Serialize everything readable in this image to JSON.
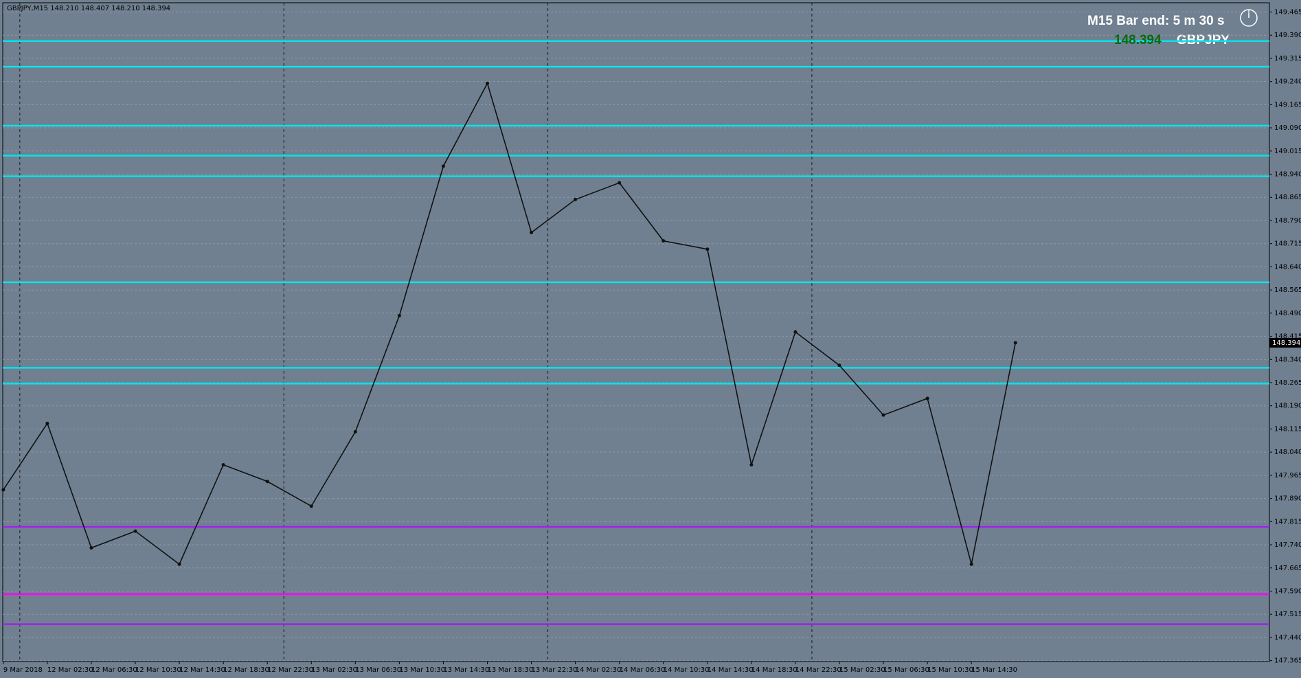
{
  "chart_data": {
    "type": "line",
    "header": "GBPJPY,M15  148.210 148.407 148.210 148.394",
    "bar_end": "M15 Bar end: 5 m 30 s",
    "symbol": "GBPJPY",
    "categories": [
      "9 Mar 2018",
      "12 Mar 02:30",
      "12 Mar 06:30",
      "12 Mar 10:30",
      "12 Mar 14:30",
      "12 Mar 18:30",
      "12 Mar 22:30",
      "13 Mar 02:30",
      "13 Mar 06:30",
      "13 Mar 10:30",
      "13 Mar 14:30",
      "13 Mar 18:30",
      "13 Mar 22:30",
      "14 Mar 02:30",
      "14 Mar 06:30",
      "14 Mar 10:30",
      "14 Mar 14:30",
      "14 Mar 18:30",
      "14 Mar 22:30",
      "15 Mar 02:30",
      "15 Mar 06:30",
      "15 Mar 10:30",
      "15 Mar 14:30",
      null
    ],
    "series": [
      {
        "name": "GBPJPY",
        "color": "#111111",
        "values": [
          147.918,
          148.133,
          147.73,
          147.784,
          147.677,
          147.999,
          147.945,
          147.865,
          148.106,
          148.482,
          148.966,
          149.234,
          148.751,
          148.858,
          148.912,
          148.724,
          148.697,
          147.999,
          148.429,
          148.321,
          148.16,
          148.214,
          147.677,
          148.394
        ]
      }
    ],
    "levels": [
      {
        "value": 149.371,
        "color": "#00e5ee"
      },
      {
        "value": 149.288,
        "color": "#00e5ee"
      },
      {
        "value": 149.097,
        "color": "#00e5ee"
      },
      {
        "value": 149.0,
        "color": "#00e5ee"
      },
      {
        "value": 148.933,
        "color": "#00e5ee"
      },
      {
        "value": 148.59,
        "color": "#00e5ee"
      },
      {
        "value": 148.313,
        "color": "#00e5ee"
      },
      {
        "value": 148.262,
        "color": "#00e5ee"
      },
      {
        "value": 147.798,
        "color": "#a020f0"
      },
      {
        "value": 147.58,
        "color": "#ff00ff"
      },
      {
        "value": 147.483,
        "color": "#a020f0"
      }
    ],
    "ylim": [
      147.362,
      149.495
    ],
    "yticks": [
      149.465,
      {
        "value": 149.39,
        "label": "149.390"
      },
      149.315,
      {
        "value": 149.24,
        "label": "149.240"
      },
      149.165,
      {
        "value": 149.09,
        "label": "149.090"
      },
      149.015,
      {
        "value": 148.94,
        "label": "148.940"
      },
      148.865,
      {
        "value": 148.79,
        "label": "148.790"
      },
      148.715,
      {
        "value": 148.64,
        "label": "148.640"
      },
      148.565,
      {
        "value": 148.49,
        "label": "148.490"
      },
      148.415,
      {
        "value": 148.34,
        "label": "148.340"
      },
      148.265,
      {
        "value": 148.19,
        "label": "148.190"
      },
      148.115,
      {
        "value": 148.04,
        "label": "148.040"
      },
      147.965,
      {
        "value": 147.89,
        "label": "147.890"
      },
      147.815,
      {
        "value": 147.74,
        "label": "147.740"
      },
      147.665,
      {
        "value": 147.59,
        "label": "147.590"
      },
      147.515,
      {
        "value": 147.44,
        "label": "147.440"
      },
      147.365
    ],
    "grid": true
  }
}
